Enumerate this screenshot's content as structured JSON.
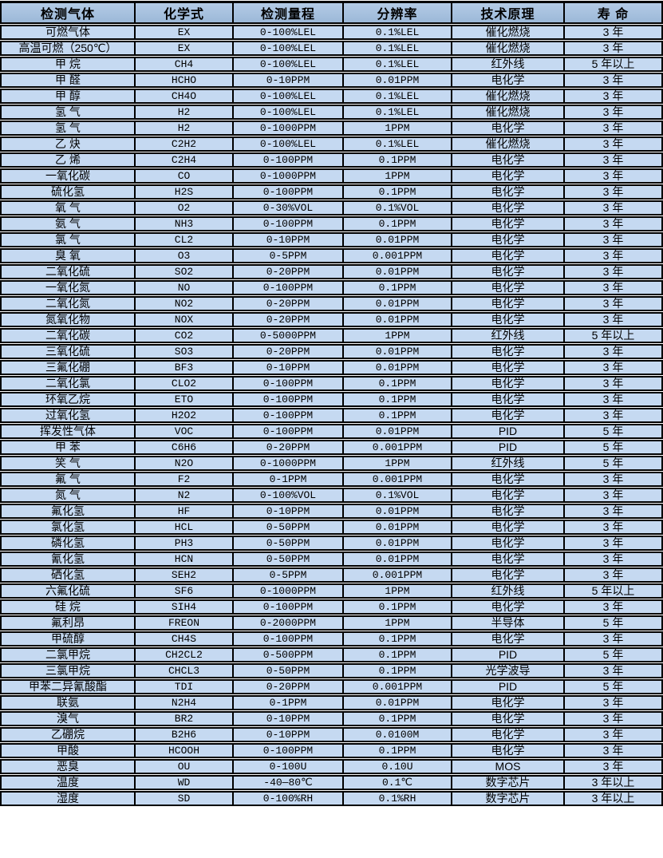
{
  "colors": {
    "header_bg": "#a3bcda",
    "row_bg": "#c5d9f1",
    "border": "#000000",
    "row_gap": "#ffffff",
    "text": "#000000"
  },
  "table": {
    "headers": [
      "检测气体",
      "化学式",
      "检测量程",
      "分辨率",
      "技术原理",
      "寿 命"
    ],
    "column_names": [
      "cell-gas-name",
      "cell-chemical-formula",
      "cell-detection-range",
      "cell-resolution",
      "cell-technology",
      "cell-lifespan"
    ],
    "rows": [
      [
        "可燃气体",
        "EX",
        "0-100%LEL",
        "0.1%LEL",
        "催化燃烧",
        "3 年"
      ],
      [
        "高温可燃（250℃）",
        "EX",
        "0-100%LEL",
        "0.1%LEL",
        "催化燃烧",
        "3 年"
      ],
      [
        "甲 烷",
        "CH4",
        "0-100%LEL",
        "0.1%LEL",
        "红外线",
        "5 年以上"
      ],
      [
        "甲 醛",
        "HCHO",
        "0-10PPM",
        "0.01PPM",
        "电化学",
        "3 年"
      ],
      [
        "甲 醇",
        "CH4O",
        "0-100%LEL",
        "0.1%LEL",
        "催化燃烧",
        "3 年"
      ],
      [
        "氢 气",
        "H2",
        "0-100%LEL",
        "0.1%LEL",
        "催化燃烧",
        "3 年"
      ],
      [
        "氢 气",
        "H2",
        "0-1000PPM",
        "1PPM",
        "电化学",
        "3 年"
      ],
      [
        "乙 炔",
        "C2H2",
        "0-100%LEL",
        "0.1%LEL",
        "催化燃烧",
        "3 年"
      ],
      [
        "乙 烯",
        "C2H4",
        "0-100PPM",
        "0.1PPM",
        "电化学",
        "3 年"
      ],
      [
        "一氧化碳",
        "CO",
        "0-1000PPM",
        "1PPM",
        "电化学",
        "3 年"
      ],
      [
        "硫化氢",
        "H2S",
        "0-100PPM",
        "0.1PPM",
        "电化学",
        "3 年"
      ],
      [
        "氧 气",
        "O2",
        "0-30%VOL",
        "0.1%VOL",
        "电化学",
        "3 年"
      ],
      [
        "氨 气",
        "NH3",
        "0-100PPM",
        "0.1PPM",
        "电化学",
        "3 年"
      ],
      [
        "氯 气",
        "CL2",
        "0-10PPM",
        "0.01PPM",
        "电化学",
        "3 年"
      ],
      [
        "臭 氧",
        "O3",
        "0-5PPM",
        "0.001PPM",
        "电化学",
        "3 年"
      ],
      [
        "二氧化硫",
        "SO2",
        "0-20PPM",
        "0.01PPM",
        "电化学",
        "3 年"
      ],
      [
        "一氧化氮",
        "NO",
        "0-100PPM",
        "0.1PPM",
        "电化学",
        "3 年"
      ],
      [
        "二氧化氮",
        "NO2",
        "0-20PPM",
        "0.01PPM",
        "电化学",
        "3 年"
      ],
      [
        "氮氧化物",
        "NOX",
        "0-20PPM",
        "0.01PPM",
        "电化学",
        "3 年"
      ],
      [
        "二氧化碳",
        "CO2",
        "0-5000PPM",
        "1PPM",
        "红外线",
        "5 年以上"
      ],
      [
        "三氧化硫",
        "SO3",
        "0-20PPM",
        "0.01PPM",
        "电化学",
        "3 年"
      ],
      [
        "三氟化硼",
        "BF3",
        "0-10PPM",
        "0.01PPM",
        "电化学",
        "3 年"
      ],
      [
        "二氧化氯",
        "CLO2",
        "0-100PPM",
        "0.1PPM",
        "电化学",
        "3 年"
      ],
      [
        "环氧乙烷",
        "ETO",
        "0-100PPM",
        "0.1PPM",
        "电化学",
        "3 年"
      ],
      [
        "过氧化氢",
        "H2O2",
        "0-100PPM",
        "0.1PPM",
        "电化学",
        "3 年"
      ],
      [
        "挥发性气体",
        "VOC",
        "0-100PPM",
        "0.01PPM",
        "PID",
        "5 年"
      ],
      [
        "甲 苯",
        "C6H6",
        "0-20PPM",
        "0.001PPM",
        "PID",
        "5 年"
      ],
      [
        "笑 气",
        "N2O",
        "0-1000PPM",
        "1PPM",
        "红外线",
        "5 年"
      ],
      [
        "氟 气",
        "F2",
        "0-1PPM",
        "0.001PPM",
        "电化学",
        "3 年"
      ],
      [
        "氮 气",
        "N2",
        "0-100%VOL",
        "0.1%VOL",
        "电化学",
        "3 年"
      ],
      [
        "氟化氢",
        "HF",
        "0-10PPM",
        "0.01PPM",
        "电化学",
        "3 年"
      ],
      [
        "氯化氢",
        "HCL",
        "0-50PPM",
        "0.01PPM",
        "电化学",
        "3 年"
      ],
      [
        "磷化氢",
        "PH3",
        "0-50PPM",
        "0.01PPM",
        "电化学",
        "3 年"
      ],
      [
        "氰化氢",
        "HCN",
        "0-50PPM",
        "0.01PPM",
        "电化学",
        "3 年"
      ],
      [
        "硒化氢",
        "SEH2",
        "0-5PPM",
        "0.001PPM",
        "电化学",
        "3 年"
      ],
      [
        "六氟化硫",
        "SF6",
        "0-1000PPM",
        "1PPM",
        "红外线",
        "5 年以上"
      ],
      [
        "硅 烷",
        "SIH4",
        "0-100PPM",
        "0.1PPM",
        "电化学",
        "3 年"
      ],
      [
        "氟利昂",
        "FREON",
        "0-2000PPM",
        "1PPM",
        "半导体",
        "5 年"
      ],
      [
        "甲硫醇",
        "CH4S",
        "0-100PPM",
        "0.1PPM",
        "电化学",
        "3 年"
      ],
      [
        "二氯甲烷",
        "CH2CL2",
        "0-500PPM",
        "0.1PPM",
        "PID",
        "5 年"
      ],
      [
        "三氯甲烷",
        "CHCL3",
        "0-50PPM",
        "0.1PPM",
        "光学波导",
        "3 年"
      ],
      [
        "甲苯二异氰酸酯",
        "TDI",
        "0-20PPM",
        "0.001PPM",
        "PID",
        "5 年"
      ],
      [
        "联氨",
        "N2H4",
        "0-1PPM",
        "0.01PPM",
        "电化学",
        "3 年"
      ],
      [
        "溴气",
        "BR2",
        "0-10PPM",
        "0.1PPM",
        "电化学",
        "3 年"
      ],
      [
        "乙硼烷",
        "B2H6",
        "0-10PPM",
        "0.0100M",
        "电化学",
        "3 年"
      ],
      [
        "甲酸",
        "HCOOH",
        "0-100PPM",
        "0.1PPM",
        "电化学",
        "3 年"
      ],
      [
        "恶臭",
        "OU",
        "0-100U",
        "0.10U",
        "MOS",
        "3 年"
      ],
      [
        "温度",
        "WD",
        "-40—80℃",
        "0.1℃",
        "数字芯片",
        "3 年以上"
      ],
      [
        "湿度",
        "SD",
        "0-100%RH",
        "0.1%RH",
        "数字芯片",
        "3 年以上"
      ]
    ]
  }
}
